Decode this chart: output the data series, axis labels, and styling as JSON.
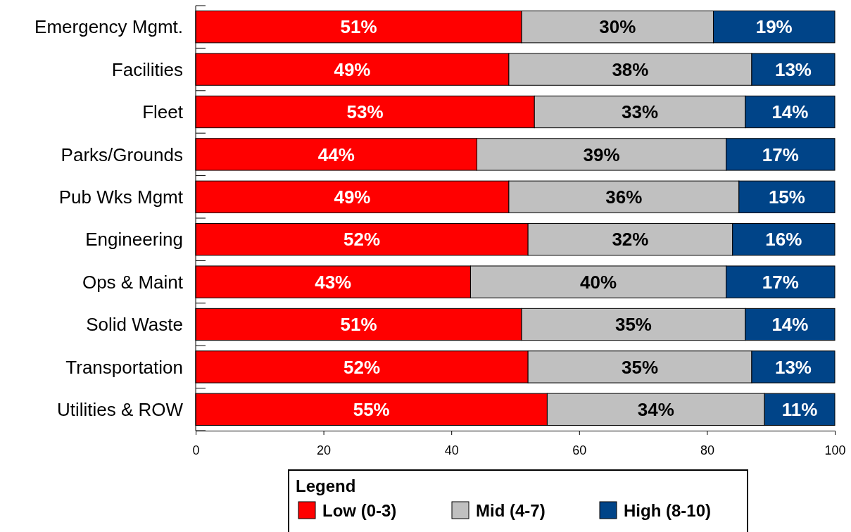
{
  "chart_data": {
    "type": "bar",
    "orientation": "horizontal",
    "stacked": true,
    "categories": [
      "Emergency Mgmt.",
      "Facilities",
      "Fleet",
      "Parks/Grounds",
      "Pub Wks Mgmt",
      "Engineering",
      "Ops & Maint",
      "Solid Waste",
      "Transportation",
      "Utilities & ROW"
    ],
    "series": [
      {
        "name": "Low (0-3)",
        "color": "#ff0000",
        "values": [
          51,
          49,
          53,
          44,
          49,
          52,
          43,
          51,
          52,
          55
        ],
        "value_labels": [
          "51%",
          "49%",
          "53%",
          "44%",
          "49%",
          "52%",
          "43%",
          "51%",
          "52%",
          "55%"
        ]
      },
      {
        "name": "Mid (4-7)",
        "color": "#c0c0c0",
        "values": [
          30,
          38,
          33,
          39,
          36,
          32,
          40,
          35,
          35,
          34
        ],
        "value_labels": [
          "30%",
          "38%",
          "33%",
          "39%",
          "36%",
          "32%",
          "40%",
          "35%",
          "35%",
          "34%"
        ]
      },
      {
        "name": "High (8-10)",
        "color": "#004488",
        "values": [
          19,
          13,
          14,
          17,
          15,
          16,
          17,
          14,
          13,
          11
        ],
        "value_labels": [
          "19%",
          "13%",
          "14%",
          "17%",
          "15%",
          "16%",
          "17%",
          "14%",
          "13%",
          "11%"
        ]
      }
    ],
    "xlim": [
      0,
      100
    ],
    "xticks": [
      0,
      20,
      40,
      60,
      80,
      100
    ],
    "legend": "bottom",
    "legend_title": "Legend",
    "grid": false
  }
}
